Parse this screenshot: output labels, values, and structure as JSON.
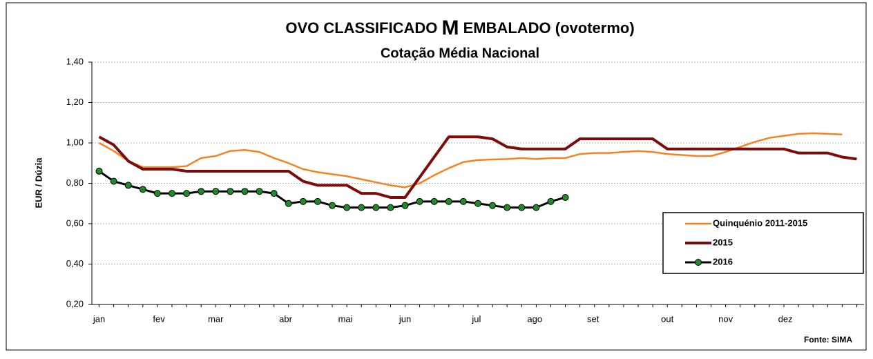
{
  "chart_data": {
    "type": "line",
    "title_parts": [
      "OVO CLASSIFICADO ",
      "M",
      " EMBALADO (ovotermo)"
    ],
    "subtitle": "Cotação Média Nacional",
    "y_label": "EUR / Dúzia",
    "source": "Fonte: SIMA",
    "x": [
      1,
      2,
      3,
      4,
      5,
      6,
      7,
      8,
      9,
      10,
      11,
      12,
      13,
      14,
      15,
      16,
      17,
      18,
      19,
      20,
      21,
      22,
      23,
      24,
      25,
      26,
      27,
      28,
      29,
      30,
      31,
      32,
      33,
      34,
      35,
      36,
      37,
      38,
      39,
      40,
      41,
      42,
      43,
      44,
      45,
      46,
      47,
      48,
      49,
      50,
      51,
      52,
      53
    ],
    "xlim": [
      0.5,
      53.5
    ],
    "xticks": [
      {
        "value": 1,
        "label": "jan"
      },
      {
        "value": 5.1,
        "label": "fev"
      },
      {
        "value": 9,
        "label": "mar"
      },
      {
        "value": 13.8,
        "label": "abr"
      },
      {
        "value": 17.9,
        "label": "mai"
      },
      {
        "value": 22,
        "label": "jun"
      },
      {
        "value": 26.9,
        "label": "jul"
      },
      {
        "value": 30.9,
        "label": "ago"
      },
      {
        "value": 34.9,
        "label": "set"
      },
      {
        "value": 40,
        "label": "out"
      },
      {
        "value": 44,
        "label": "nov"
      },
      {
        "value": 48.1,
        "label": "dez"
      }
    ],
    "ylim": [
      0.2,
      1.4
    ],
    "yticks": [
      {
        "value": 0.2,
        "label": "0,20"
      },
      {
        "value": 0.4,
        "label": "0,40"
      },
      {
        "value": 0.6,
        "label": "0,60"
      },
      {
        "value": 0.8,
        "label": "0,80"
      },
      {
        "value": 1.0,
        "label": "1,00"
      },
      {
        "value": 1.2,
        "label": "1,20"
      },
      {
        "value": 1.4,
        "label": "1,40"
      }
    ],
    "grid": true,
    "legend": "right",
    "series": [
      {
        "name": "Quinquénio 2011-2015",
        "color": "#f58220",
        "width": 2.5,
        "markers": false,
        "values": [
          1.0,
          0.96,
          0.91,
          0.88,
          0.88,
          0.88,
          0.885,
          0.925,
          0.935,
          0.96,
          0.965,
          0.955,
          0.925,
          0.9,
          0.87,
          0.855,
          0.845,
          0.835,
          0.82,
          0.805,
          0.79,
          0.78,
          0.8,
          0.84,
          0.875,
          0.905,
          0.915,
          0.918,
          0.92,
          0.925,
          0.92,
          0.925,
          0.925,
          0.945,
          0.95,
          0.95,
          0.955,
          0.96,
          0.955,
          0.945,
          0.94,
          0.935,
          0.935,
          0.955,
          0.98,
          1.005,
          1.025,
          1.035,
          1.045,
          1.048,
          1.045,
          1.042,
          null
        ]
      },
      {
        "name": "2015",
        "color": "#7b0c0c",
        "width": 4,
        "markers": false,
        "values": [
          1.03,
          0.99,
          0.91,
          0.87,
          0.87,
          0.87,
          0.86,
          0.86,
          0.86,
          0.86,
          0.86,
          0.86,
          0.86,
          0.86,
          0.81,
          0.79,
          0.79,
          0.79,
          0.75,
          0.75,
          0.73,
          0.73,
          0.83,
          0.93,
          1.03,
          1.03,
          1.03,
          1.02,
          0.98,
          0.97,
          0.97,
          0.97,
          0.97,
          1.02,
          1.02,
          1.02,
          1.02,
          1.02,
          1.02,
          0.97,
          0.97,
          0.97,
          0.97,
          0.97,
          0.97,
          0.97,
          0.97,
          0.97,
          0.95,
          0.95,
          0.95,
          0.93,
          0.92
        ]
      },
      {
        "name": "2016",
        "color": "#000000",
        "marker_color": "#1f8a2a",
        "width": 3,
        "markers": true,
        "values": [
          0.86,
          0.81,
          0.79,
          0.77,
          0.75,
          0.75,
          0.75,
          0.76,
          0.76,
          0.76,
          0.76,
          0.76,
          0.75,
          0.7,
          0.71,
          0.71,
          0.69,
          0.68,
          0.68,
          0.68,
          0.68,
          0.69,
          0.71,
          0.71,
          0.71,
          0.71,
          0.7,
          0.69,
          0.68,
          0.68,
          0.68,
          0.71,
          0.73,
          null,
          null,
          null,
          null,
          null,
          null,
          null,
          null,
          null,
          null,
          null,
          null,
          null,
          null,
          null,
          null,
          null,
          null,
          null,
          null
        ]
      }
    ]
  }
}
